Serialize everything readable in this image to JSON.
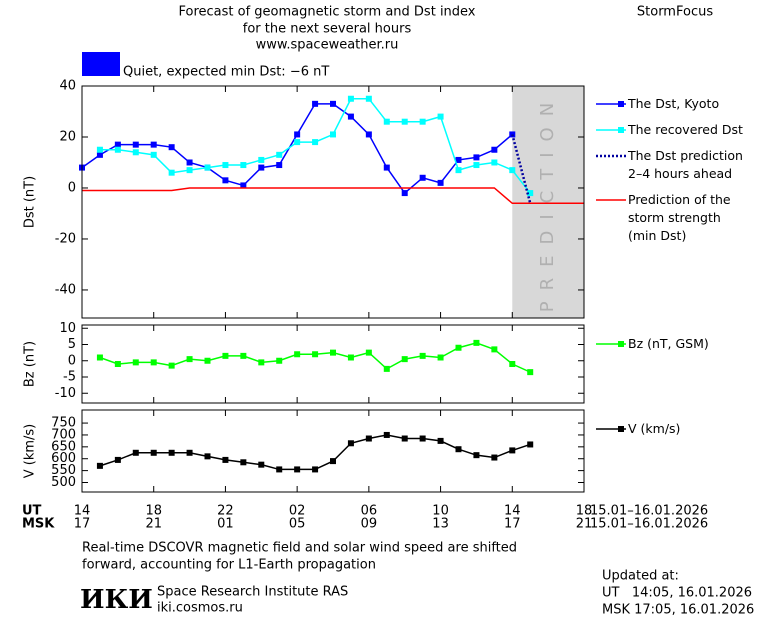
{
  "header": {
    "title": [
      "Forecast of geomagnetic storm and Dst index",
      "for the next several hours",
      "www.spaceweather.ru"
    ],
    "brand": "StormFocus",
    "status": "Quiet, expected min Dst: −6 nT",
    "status_color": "#0000ff"
  },
  "time_axis": {
    "ut_label": "UT",
    "msk_label": "MSK",
    "ut_range": "15.01–16.01.2026",
    "msk_range": "15.01–16.01.2026",
    "ut_ticks": [
      {
        "value": 0,
        "label": "14"
      },
      {
        "value": 4,
        "label": "18"
      },
      {
        "value": 8,
        "label": "22"
      },
      {
        "value": 12,
        "label": "02"
      },
      {
        "value": 16,
        "label": "06"
      },
      {
        "value": 20,
        "label": "10"
      },
      {
        "value": 24,
        "label": "14"
      },
      {
        "value": 28,
        "label": "18"
      }
    ],
    "msk_ticks": [
      {
        "value": 0,
        "label": "17"
      },
      {
        "value": 4,
        "label": "21"
      },
      {
        "value": 8,
        "label": "01"
      },
      {
        "value": 12,
        "label": "05"
      },
      {
        "value": 16,
        "label": "09"
      },
      {
        "value": 20,
        "label": "13"
      },
      {
        "value": 24,
        "label": "17"
      },
      {
        "value": 28,
        "label": "21"
      }
    ]
  },
  "chart_data": [
    {
      "type": "line",
      "ylabel": "Dst (nT)",
      "xlim": [
        0,
        28
      ],
      "ylim": [
        -51,
        40
      ],
      "yticks": [
        40,
        20,
        0,
        -20,
        -40
      ],
      "shade": {
        "xlim": [
          24,
          28
        ],
        "color": "#d8d8d8",
        "label": "PREDICTION"
      },
      "series": [
        {
          "name": "The Dst, Kyoto",
          "color": "#0000ff",
          "marker": "square",
          "x": [
            0,
            1,
            2,
            3,
            4,
            5,
            6,
            7,
            8,
            9,
            10,
            11,
            12,
            13,
            14,
            15,
            16,
            17,
            18,
            19,
            20,
            21,
            22,
            23,
            24
          ],
          "values": [
            8,
            13,
            17,
            17,
            17,
            16,
            10,
            8,
            3,
            1,
            8,
            9,
            21,
            33,
            33,
            28,
            21,
            8,
            -2,
            4,
            2,
            11,
            12,
            15,
            21
          ]
        },
        {
          "name": "The recovered Dst",
          "color": "#00ffff",
          "marker": "square",
          "x": [
            1,
            2,
            3,
            4,
            5,
            6,
            7,
            8,
            9,
            10,
            11,
            12,
            13,
            14,
            15,
            16,
            17,
            18,
            19,
            20,
            21,
            22,
            23,
            24,
            25
          ],
          "values": [
            15,
            15,
            14,
            13,
            6,
            7,
            8,
            9,
            9,
            11,
            13,
            18,
            18,
            21,
            35,
            35,
            26,
            26,
            26,
            28,
            7,
            9,
            10,
            7,
            -2
          ]
        },
        {
          "name": "The Dst prediction\n2–4 hours ahead",
          "color": "#0000a0",
          "dash": "dotted",
          "x": [
            24,
            25
          ],
          "values": [
            21,
            -6
          ]
        },
        {
          "name": "Prediction of the\nstorm strength\n(min Dst)",
          "color": "#ff0000",
          "x": [
            0,
            5,
            6,
            23,
            24,
            28
          ],
          "values": [
            -1,
            -1,
            0,
            0,
            -6,
            -6
          ]
        }
      ]
    },
    {
      "type": "line",
      "ylabel": "Bz (nT)",
      "xlim": [
        0,
        28
      ],
      "ylim": [
        -13,
        11
      ],
      "yticks": [
        10,
        5,
        0,
        -5,
        -10
      ],
      "series": [
        {
          "name": "Bz (nT, GSM)",
          "color": "#00ff00",
          "marker": "square",
          "x": [
            1,
            2,
            3,
            4,
            5,
            6,
            7,
            8,
            9,
            10,
            11,
            12,
            13,
            14,
            15,
            16,
            17,
            18,
            19,
            20,
            21,
            22,
            23,
            24,
            25
          ],
          "values": [
            1,
            -1,
            -0.5,
            -0.5,
            -1.5,
            0.5,
            0,
            1.5,
            1.5,
            -0.5,
            0,
            2,
            2,
            2.5,
            1,
            2.5,
            -2.5,
            0.5,
            1.5,
            1,
            4,
            5.5,
            3.5,
            -1,
            -3.5
          ]
        }
      ]
    },
    {
      "type": "line",
      "ylabel": "V (km/s)",
      "xlim": [
        0,
        28
      ],
      "ylim": [
        460,
        805
      ],
      "yticks": [
        750,
        700,
        650,
        600,
        550,
        500
      ],
      "series": [
        {
          "name": "V (km/s)",
          "color": "#000000",
          "marker": "square",
          "x": [
            1,
            2,
            3,
            4,
            5,
            6,
            7,
            8,
            9,
            10,
            11,
            12,
            13,
            14,
            15,
            16,
            17,
            18,
            19,
            20,
            21,
            22,
            23,
            24,
            25
          ],
          "values": [
            570,
            595,
            625,
            625,
            625,
            625,
            610,
            595,
            585,
            575,
            555,
            555,
            555,
            590,
            665,
            685,
            700,
            685,
            685,
            675,
            640,
            615,
            605,
            635,
            660
          ]
        }
      ]
    }
  ],
  "footer": {
    "note": [
      "Real-time DSCOVR magnetic field and solar wind speed are shifted",
      "forward, accounting for L1-Earth propagation"
    ],
    "logo": "ИКИ",
    "institute": "Space Research Institute RAS",
    "site": "iki.cosmos.ru",
    "updated": "Updated at:",
    "updated_ut": "UT   14:05, 16.01.2026",
    "updated_msk": "MSK 17:05, 16.01.2026"
  }
}
